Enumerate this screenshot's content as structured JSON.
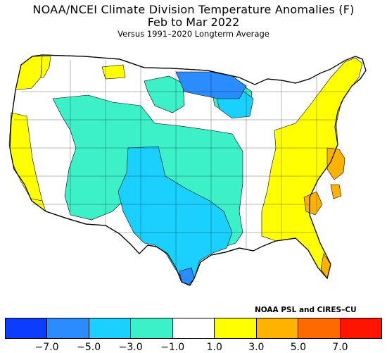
{
  "title": {
    "line1": "NOAA/NCEI Climate Division Temperature Anomalies (F)",
    "line2": "Feb to Mar 2022",
    "line3": "Versus 1991–2020 Longterm Average"
  },
  "credit": "NOAA PSL and CIRES–CU",
  "legend": {
    "colors": [
      "#0a3dff",
      "#2b8cff",
      "#19d0ff",
      "#3cf0c8",
      "#ffffff",
      "#ffff00",
      "#ffb300",
      "#ff6a00",
      "#ff1400"
    ],
    "tick_labels": [
      "−7.0",
      "−5.0",
      "−3.0",
      "−1.0",
      "1.0",
      "3.0",
      "5.0",
      "7.0"
    ]
  },
  "map": {
    "description_regions": [
      {
        "name": "west-coast",
        "color": "#ffff00"
      },
      {
        "name": "southern-plains",
        "color": "#19d0ff"
      },
      {
        "name": "rockies-plains",
        "color": "#3cf0c8"
      },
      {
        "name": "upper-midwest",
        "color": "#2b8cff"
      },
      {
        "name": "east",
        "color": "#ffff00"
      },
      {
        "name": "mid-atlantic",
        "color": "#ffb300"
      }
    ]
  }
}
